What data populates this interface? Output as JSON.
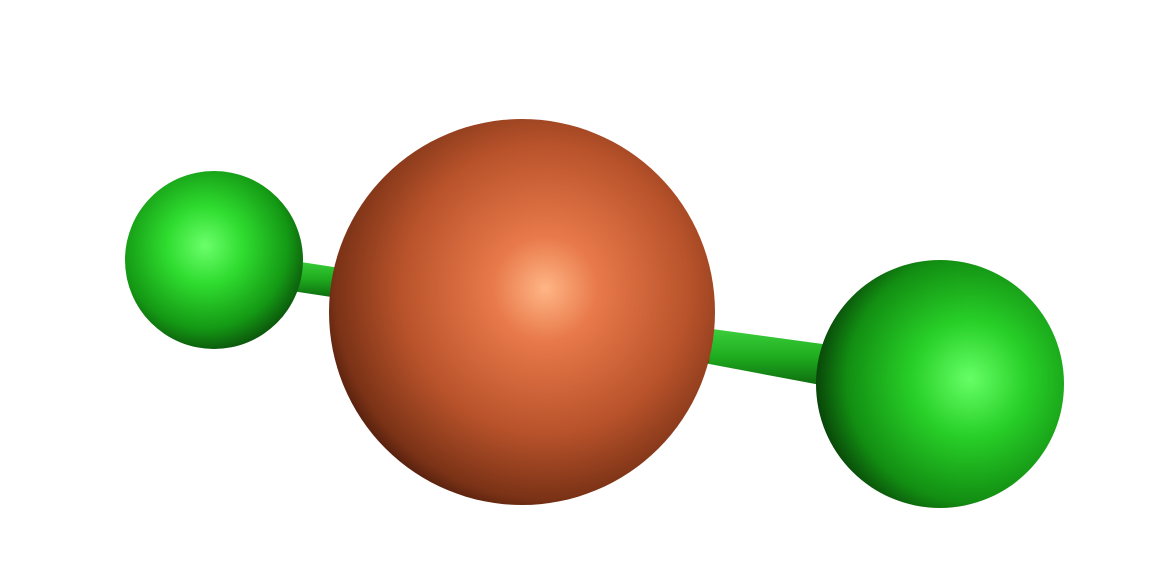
{
  "molecule": {
    "atoms": [
      {
        "id": "left-halogen",
        "element_color": "#22cc22",
        "highlight": "#66ff66",
        "shade": "#0a4a0a"
      },
      {
        "id": "central-metal",
        "element_color": "#c8572e",
        "highlight": "#ffb080",
        "shade": "#3a1208"
      },
      {
        "id": "right-halogen",
        "element_color": "#22cc22",
        "highlight": "#66ff66",
        "shade": "#0a4a0a"
      }
    ],
    "bonds": [
      {
        "from": "left-halogen",
        "to": "central-metal"
      },
      {
        "from": "central-metal",
        "to": "right-halogen"
      }
    ],
    "colors": {
      "background": "#ffffff",
      "bond_green": "#1fae1f",
      "bond_metal": "#b9532b"
    }
  }
}
